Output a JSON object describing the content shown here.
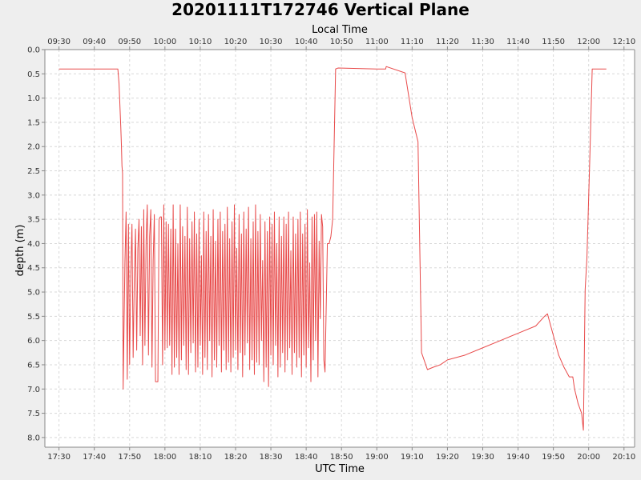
{
  "chart_data": {
    "type": "line",
    "title": "20201111T172746 Vertical Plane",
    "xlabel": "UTC Time",
    "x2label": "Local Time",
    "ylabel": "depth (m)",
    "y_inverted": true,
    "ylim": [
      0.0,
      8.2
    ],
    "xlim": [
      "17:26",
      "20:13"
    ],
    "x_ticks": [
      "17:30",
      "17:40",
      "17:50",
      "18:00",
      "18:10",
      "18:20",
      "18:30",
      "18:40",
      "18:50",
      "19:00",
      "19:10",
      "19:20",
      "19:30",
      "19:40",
      "19:50",
      "20:00",
      "20:10"
    ],
    "x2_ticks": [
      "09:30",
      "09:40",
      "09:50",
      "10:00",
      "10:10",
      "10:20",
      "10:30",
      "10:40",
      "10:50",
      "11:00",
      "11:10",
      "11:20",
      "11:30",
      "11:40",
      "11:50",
      "12:00",
      "12:10"
    ],
    "y_ticks": [
      "0.0",
      "0.5",
      "1.0",
      "1.5",
      "2.0",
      "2.5",
      "3.0",
      "3.5",
      "4.0",
      "4.5",
      "5.0",
      "5.5",
      "6.0",
      "6.5",
      "7.0",
      "7.5",
      "8.0"
    ],
    "grid": true,
    "line_color": "#e84a4a",
    "background": "#ffffff",
    "series": [
      {
        "points": [
          [
            "17:30:00",
            0.4
          ],
          [
            "17:46:40",
            0.4
          ],
          [
            "17:47:00",
            0.7
          ],
          [
            "17:47:10",
            1.0
          ],
          [
            "17:47:20",
            1.3
          ],
          [
            "17:47:30",
            1.6
          ],
          [
            "17:47:40",
            1.95
          ],
          [
            "17:47:50",
            2.4
          ],
          [
            "17:48:00",
            2.55
          ],
          [
            "17:48:10",
            7.0
          ],
          [
            "17:48:40",
            4.4
          ],
          [
            "17:49:00",
            3.35
          ],
          [
            "17:49:20",
            6.8
          ],
          [
            "17:49:40",
            3.6
          ],
          [
            "17:50:00",
            6.5
          ],
          [
            "17:50:20",
            4.6
          ],
          [
            "17:50:40",
            3.6
          ],
          [
            "17:51:00",
            6.35
          ],
          [
            "17:51:20",
            4.7
          ],
          [
            "17:51:40",
            3.7
          ],
          [
            "17:52:00",
            6.2
          ],
          [
            "17:52:20",
            4.1
          ],
          [
            "17:52:40",
            3.5
          ],
          [
            "17:53:00",
            5.9
          ],
          [
            "17:53:20",
            3.65
          ],
          [
            "17:53:40",
            6.5
          ],
          [
            "17:54:00",
            3.3
          ],
          [
            "17:54:20",
            6.1
          ],
          [
            "17:54:40",
            3.95
          ],
          [
            "17:55:00",
            3.2
          ],
          [
            "17:55:20",
            6.3
          ],
          [
            "17:55:40",
            3.85
          ],
          [
            "17:56:00",
            3.3
          ],
          [
            "17:56:20",
            6.55
          ],
          [
            "17:56:40",
            4.35
          ],
          [
            "17:57:00",
            3.4
          ],
          [
            "17:57:20",
            6.85
          ],
          [
            "17:58:00",
            6.85
          ],
          [
            "17:58:20",
            3.5
          ],
          [
            "17:58:40",
            3.45
          ],
          [
            "17:59:00",
            3.45
          ],
          [
            "17:59:20",
            6.5
          ],
          [
            "17:59:40",
            3.2
          ],
          [
            "18:00:00",
            6.2
          ],
          [
            "18:00:20",
            3.55
          ],
          [
            "18:00:40",
            6.15
          ],
          [
            "18:01:00",
            3.6
          ],
          [
            "18:01:20",
            6.1
          ],
          [
            "18:01:40",
            3.7
          ],
          [
            "18:02:00",
            6.7
          ],
          [
            "18:02:20",
            3.2
          ],
          [
            "18:02:40",
            6.55
          ],
          [
            "18:03:00",
            3.7
          ],
          [
            "18:03:20",
            6.35
          ],
          [
            "18:03:40",
            4.0
          ],
          [
            "18:04:00",
            6.7
          ],
          [
            "18:04:20",
            3.2
          ],
          [
            "18:04:40",
            6.4
          ],
          [
            "18:05:00",
            3.65
          ],
          [
            "18:05:20",
            6.1
          ],
          [
            "18:05:40",
            3.85
          ],
          [
            "18:06:00",
            6.6
          ],
          [
            "18:06:20",
            3.25
          ],
          [
            "18:06:40",
            6.7
          ],
          [
            "18:07:00",
            3.9
          ],
          [
            "18:07:20",
            6.25
          ],
          [
            "18:07:40",
            3.55
          ],
          [
            "18:08:00",
            6.05
          ],
          [
            "18:08:20",
            3.35
          ],
          [
            "18:08:40",
            6.65
          ],
          [
            "18:09:00",
            3.8
          ],
          [
            "18:09:20",
            6.55
          ],
          [
            "18:09:40",
            3.5
          ],
          [
            "18:10:00",
            6.1
          ],
          [
            "18:10:20",
            4.25
          ],
          [
            "18:10:40",
            6.7
          ],
          [
            "18:11:00",
            3.35
          ],
          [
            "18:11:20",
            6.35
          ],
          [
            "18:11:40",
            3.75
          ],
          [
            "18:12:00",
            6.6
          ],
          [
            "18:12:20",
            3.4
          ],
          [
            "18:12:40",
            6.0
          ],
          [
            "18:13:00",
            3.85
          ],
          [
            "18:13:20",
            6.75
          ],
          [
            "18:13:40",
            3.3
          ],
          [
            "18:14:00",
            6.4
          ],
          [
            "18:14:20",
            3.95
          ],
          [
            "18:14:40",
            6.55
          ],
          [
            "18:15:00",
            3.5
          ],
          [
            "18:15:20",
            6.1
          ],
          [
            "18:15:40",
            3.35
          ],
          [
            "18:16:00",
            6.65
          ],
          [
            "18:16:20",
            3.75
          ],
          [
            "18:16:40",
            6.2
          ],
          [
            "18:17:00",
            3.6
          ],
          [
            "18:17:20",
            6.6
          ],
          [
            "18:17:40",
            3.25
          ],
          [
            "18:18:00",
            6.45
          ],
          [
            "18:18:20",
            3.9
          ],
          [
            "18:18:40",
            6.65
          ],
          [
            "18:19:00",
            3.55
          ],
          [
            "18:19:20",
            6.35
          ],
          [
            "18:19:40",
            3.2
          ],
          [
            "18:20:00",
            6.2
          ],
          [
            "18:20:20",
            4.1
          ],
          [
            "18:20:40",
            6.6
          ],
          [
            "18:21:00",
            3.4
          ],
          [
            "18:21:20",
            6.25
          ],
          [
            "18:21:40",
            3.8
          ],
          [
            "18:22:00",
            6.75
          ],
          [
            "18:22:20",
            3.35
          ],
          [
            "18:22:40",
            6.3
          ],
          [
            "18:23:00",
            3.7
          ],
          [
            "18:23:20",
            6.05
          ],
          [
            "18:23:40",
            3.25
          ],
          [
            "18:24:00",
            6.6
          ],
          [
            "18:24:20",
            3.9
          ],
          [
            "18:24:40",
            6.4
          ],
          [
            "18:25:00",
            3.55
          ],
          [
            "18:25:20",
            6.7
          ],
          [
            "18:25:40",
            3.2
          ],
          [
            "18:26:00",
            6.45
          ],
          [
            "18:26:20",
            3.75
          ],
          [
            "18:26:40",
            6.5
          ],
          [
            "18:27:00",
            3.4
          ],
          [
            "18:27:20",
            6.0
          ],
          [
            "18:27:40",
            4.35
          ],
          [
            "18:28:00",
            6.85
          ],
          [
            "18:28:20",
            3.55
          ],
          [
            "18:28:40",
            6.55
          ],
          [
            "18:29:00",
            3.75
          ],
          [
            "18:29:20",
            6.95
          ],
          [
            "18:29:40",
            3.45
          ],
          [
            "18:30:00",
            6.3
          ],
          [
            "18:30:20",
            3.6
          ],
          [
            "18:30:40",
            6.5
          ],
          [
            "18:31:00",
            3.35
          ],
          [
            "18:31:20",
            6.1
          ],
          [
            "18:31:40",
            4.0
          ],
          [
            "18:32:00",
            6.75
          ],
          [
            "18:32:20",
            3.45
          ],
          [
            "18:32:40",
            6.55
          ],
          [
            "18:33:00",
            3.85
          ],
          [
            "18:33:20",
            6.25
          ],
          [
            "18:33:40",
            3.45
          ],
          [
            "18:34:00",
            6.65
          ],
          [
            "18:34:20",
            3.6
          ],
          [
            "18:34:40",
            6.4
          ],
          [
            "18:35:00",
            3.35
          ],
          [
            "18:35:20",
            6.15
          ],
          [
            "18:35:40",
            4.15
          ],
          [
            "18:36:00",
            6.7
          ],
          [
            "18:36:20",
            3.45
          ],
          [
            "18:36:40",
            6.25
          ],
          [
            "18:37:00",
            3.8
          ],
          [
            "18:37:20",
            6.55
          ],
          [
            "18:37:40",
            3.5
          ],
          [
            "18:38:00",
            6.35
          ],
          [
            "18:38:20",
            3.35
          ],
          [
            "18:38:40",
            6.75
          ],
          [
            "18:39:00",
            3.8
          ],
          [
            "18:39:20",
            6.3
          ],
          [
            "18:39:40",
            3.6
          ],
          [
            "18:40:00",
            6.55
          ],
          [
            "18:40:20",
            3.3
          ],
          [
            "18:40:40",
            6.15
          ],
          [
            "18:41:00",
            4.4
          ],
          [
            "18:41:20",
            6.85
          ],
          [
            "18:41:40",
            3.45
          ],
          [
            "18:42:00",
            6.4
          ],
          [
            "18:42:20",
            3.4
          ],
          [
            "18:42:40",
            6.0
          ],
          [
            "18:43:00",
            3.35
          ],
          [
            "18:43:20",
            6.75
          ],
          [
            "18:43:40",
            3.95
          ],
          [
            "18:44:00",
            5.55
          ],
          [
            "18:44:20",
            3.4
          ],
          [
            "18:44:40",
            3.65
          ],
          [
            "18:45:00",
            6.4
          ],
          [
            "18:45:20",
            6.65
          ],
          [
            "18:46:00",
            4.0
          ],
          [
            "18:46:30",
            4.0
          ],
          [
            "18:47:00",
            3.85
          ],
          [
            "18:47:30",
            3.5
          ],
          [
            "18:48:20",
            0.4
          ],
          [
            "18:49:00",
            0.38
          ],
          [
            "19:00:00",
            0.4
          ],
          [
            "19:02:30",
            0.4
          ],
          [
            "19:02:40",
            0.35
          ],
          [
            "19:08:00",
            0.48
          ],
          [
            "19:10:00",
            1.4
          ],
          [
            "19:11:40",
            1.9
          ],
          [
            "19:12:40",
            6.25
          ],
          [
            "19:14:20",
            6.6
          ],
          [
            "19:16:00",
            6.55
          ],
          [
            "19:18:00",
            6.5
          ],
          [
            "19:20:00",
            6.4
          ],
          [
            "19:25:00",
            6.3
          ],
          [
            "19:30:00",
            6.15
          ],
          [
            "19:35:00",
            6.0
          ],
          [
            "19:40:00",
            5.85
          ],
          [
            "19:45:00",
            5.7
          ],
          [
            "19:47:30",
            5.5
          ],
          [
            "19:48:20",
            5.45
          ],
          [
            "19:51:30",
            6.3
          ],
          [
            "19:53:00",
            6.55
          ],
          [
            "19:54:30",
            6.75
          ],
          [
            "19:55:30",
            6.75
          ],
          [
            "19:56:00",
            7.0
          ],
          [
            "19:57:00",
            7.3
          ],
          [
            "19:58:00",
            7.5
          ],
          [
            "19:58:30",
            7.85
          ],
          [
            "19:59:00",
            4.95
          ],
          [
            "19:59:30",
            4.3
          ],
          [
            "20:00:20",
            2.2
          ],
          [
            "20:01:00",
            0.4
          ],
          [
            "20:05:00",
            0.4
          ]
        ]
      }
    ]
  }
}
